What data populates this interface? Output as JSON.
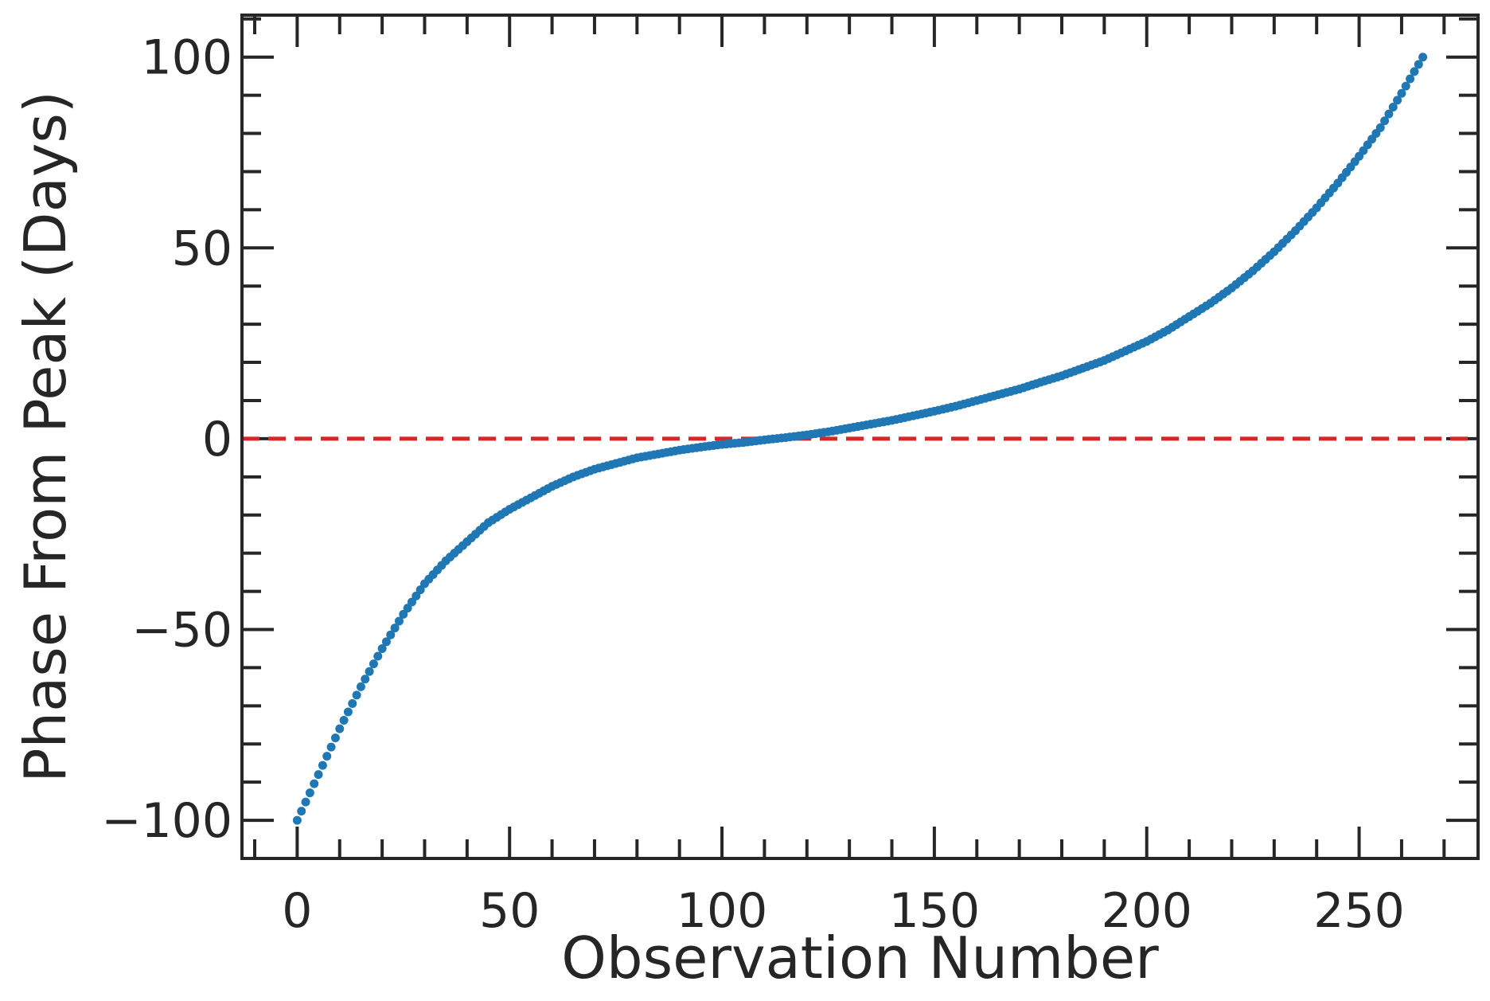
{
  "chart_data": {
    "type": "scatter",
    "title": "",
    "xlabel": "Observation Number",
    "ylabel": "Phase From Peak (Days)",
    "xlim": [
      -13,
      278
    ],
    "ylim": [
      -110,
      111
    ],
    "x_major_ticks": [
      0,
      50,
      100,
      150,
      200,
      250
    ],
    "x_tick_labels": [
      "0",
      "50",
      "100",
      "150",
      "200",
      "250"
    ],
    "x_minor_step": 10,
    "y_major_ticks": [
      -100,
      -50,
      0,
      50,
      100
    ],
    "y_tick_labels": [
      "−100",
      "−50",
      "0",
      "50",
      "100"
    ],
    "y_minor_step": 10,
    "grid": false,
    "reference_line": {
      "y": 0,
      "style": "dashed",
      "color": "#d62728"
    },
    "series": [
      {
        "color": "#1f77b4",
        "marker": "circle",
        "points": [
          [
            0,
            -100
          ],
          [
            5,
            -88
          ],
          [
            10,
            -76
          ],
          [
            15,
            -65
          ],
          [
            20,
            -55
          ],
          [
            25,
            -46
          ],
          [
            30,
            -38
          ],
          [
            35,
            -32
          ],
          [
            40,
            -27
          ],
          [
            45,
            -22
          ],
          [
            50,
            -18.5
          ],
          [
            55,
            -15.5
          ],
          [
            60,
            -12.5
          ],
          [
            65,
            -10
          ],
          [
            70,
            -8
          ],
          [
            75,
            -6.5
          ],
          [
            80,
            -5
          ],
          [
            85,
            -4
          ],
          [
            90,
            -3
          ],
          [
            95,
            -2.2
          ],
          [
            100,
            -1.5
          ],
          [
            105,
            -1
          ],
          [
            110,
            -0.3
          ],
          [
            115,
            0.3
          ],
          [
            120,
            1
          ],
          [
            125,
            1.8
          ],
          [
            130,
            2.8
          ],
          [
            135,
            3.8
          ],
          [
            140,
            4.8
          ],
          [
            145,
            6
          ],
          [
            150,
            7.2
          ],
          [
            155,
            8.5
          ],
          [
            160,
            10
          ],
          [
            165,
            11.5
          ],
          [
            170,
            13
          ],
          [
            175,
            14.8
          ],
          [
            180,
            16.5
          ],
          [
            185,
            18.5
          ],
          [
            190,
            20.5
          ],
          [
            195,
            23
          ],
          [
            200,
            25.5
          ],
          [
            205,
            28.5
          ],
          [
            210,
            32
          ],
          [
            215,
            35.5
          ],
          [
            220,
            39.5
          ],
          [
            225,
            44
          ],
          [
            230,
            49
          ],
          [
            235,
            54.5
          ],
          [
            240,
            60.5
          ],
          [
            245,
            67
          ],
          [
            250,
            74
          ],
          [
            255,
            81.5
          ],
          [
            260,
            90.5
          ],
          [
            265,
            100
          ]
        ]
      }
    ]
  }
}
